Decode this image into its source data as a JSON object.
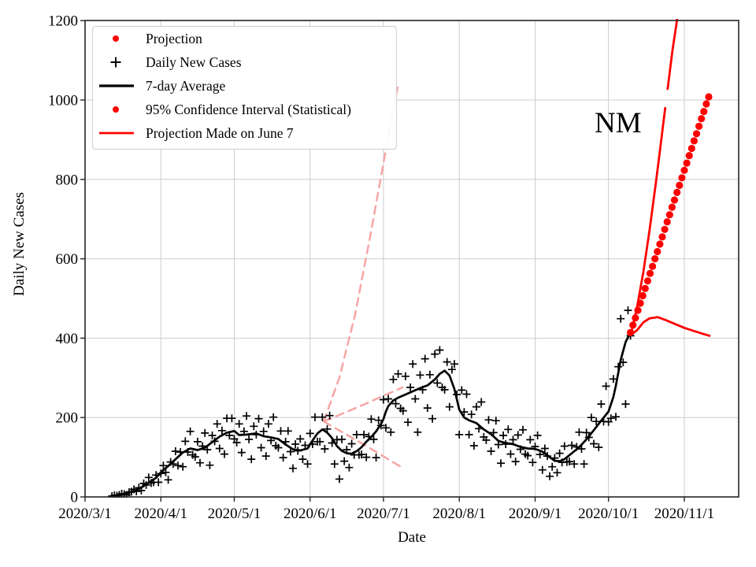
{
  "chart_data": {
    "type": "line",
    "title": "",
    "xlabel": "Date",
    "ylabel": "Daily New Cases",
    "annotation": "NM",
    "x_day_zero": "2020/3/1",
    "x_tick_labels": [
      "2020/3/1",
      "2020/4/1",
      "2020/5/1",
      "2020/6/1",
      "2020/7/1",
      "2020/8/1",
      "2020/9/1",
      "2020/10/1",
      "2020/11/1"
    ],
    "x_tick_days": [
      0,
      31,
      61,
      92,
      122,
      153,
      184,
      214,
      245
    ],
    "xlim_days": [
      0,
      267
    ],
    "y_ticks": [
      0,
      200,
      400,
      600,
      800,
      1000,
      1200
    ],
    "ylim": [
      0,
      1200
    ],
    "grid": true,
    "legend": {
      "position": "upper-left",
      "items": [
        {
          "label": "Projection",
          "marker": "red-dot"
        },
        {
          "label": "Daily New Cases",
          "marker": "black-plus"
        },
        {
          "label": "7-day Average",
          "marker": "black-line"
        },
        {
          "label": "95% Confidence Interval (Statistical)",
          "marker": "red-dot"
        },
        {
          "label": "Projection Made on June 7",
          "marker": "red-line"
        }
      ]
    },
    "colors": {
      "projection_red": "#ff0000",
      "data_black": "#000000",
      "june7_pink": "#f8a5a5",
      "grid_gray": "#cdcdcd",
      "spine": "#262626",
      "legend_border": "#d4d4d4"
    },
    "series": {
      "daily_new_cases": {
        "start_day": 11,
        "values": [
          2,
          4,
          3,
          5,
          8,
          7,
          5,
          12,
          13,
          19,
          14,
          23,
          16,
          34,
          30,
          49,
          35,
          37,
          55,
          37,
          59,
          79,
          62,
          43,
          88,
          83,
          115,
          79,
          113,
          76,
          140,
          113,
          165,
          106,
          101,
          139,
          86,
          128,
          161,
          119,
          80,
          155,
          140,
          184,
          122,
          167,
          108,
          198,
          155,
          198,
          146,
          137,
          184,
          112,
          165,
          204,
          145,
          95,
          178,
          157,
          197,
          124,
          165,
          103,
          184,
          142,
          201,
          129,
          124,
          166,
          99,
          139,
          166,
          114,
          72,
          133,
          116,
          146,
          95,
          130,
          83,
          160,
          133,
          201,
          139,
          139,
          201,
          121,
          171,
          205,
          136,
          83,
          144,
          45,
          145,
          90,
          119,
          74,
          134,
          106,
          157,
          106,
          107,
          157,
          100,
          152,
          196,
          145,
          99,
          193,
          180,
          245,
          174,
          247,
          163,
          296,
          235,
          310,
          223,
          217,
          304,
          188,
          276,
          335,
          247,
          163,
          307,
          270,
          348,
          224,
          308,
          197,
          360,
          287,
          370,
          276,
          270,
          340,
          227,
          321,
          335,
          258,
          157,
          269,
          214,
          259,
          157,
          208,
          129,
          227,
          172,
          239,
          151,
          143,
          194,
          115,
          162,
          192,
          132,
          85,
          155,
          133,
          170,
          108,
          144,
          89,
          156,
          120,
          169,
          108,
          104,
          144,
          87,
          127,
          155,
          107,
          68,
          122,
          103,
          52,
          76,
          98,
          61,
          110,
          87,
          128,
          88,
          89,
          130,
          83,
          126,
          163,
          121,
          83,
          162,
          150,
          200,
          134,
          190,
          125,
          234,
          190,
          279,
          189,
          198,
          297,
          202,
          328,
          449,
          339,
          234,
          470,
          406
        ]
      },
      "avg7": [
        [
          11,
          2
        ],
        [
          14,
          5
        ],
        [
          17,
          9
        ],
        [
          20,
          15
        ],
        [
          23,
          24
        ],
        [
          26,
          36
        ],
        [
          29,
          48
        ],
        [
          31,
          62
        ],
        [
          34,
          78
        ],
        [
          37,
          95
        ],
        [
          40,
          112
        ],
        [
          43,
          122
        ],
        [
          46,
          118
        ],
        [
          49,
          124
        ],
        [
          52,
          138
        ],
        [
          55,
          152
        ],
        [
          58,
          162
        ],
        [
          61,
          166
        ],
        [
          63,
          156
        ],
        [
          66,
          157
        ],
        [
          70,
          160
        ],
        [
          73,
          153
        ],
        [
          76,
          150
        ],
        [
          79,
          146
        ],
        [
          82,
          132
        ],
        [
          85,
          120
        ],
        [
          88,
          117
        ],
        [
          91,
          122
        ],
        [
          93,
          142
        ],
        [
          95,
          160
        ],
        [
          97,
          170
        ],
        [
          99,
          162
        ],
        [
          101,
          148
        ],
        [
          103,
          128
        ],
        [
          105,
          116
        ],
        [
          107,
          110
        ],
        [
          109,
          109
        ],
        [
          111,
          115
        ],
        [
          113,
          125
        ],
        [
          115,
          139
        ],
        [
          117,
          151
        ],
        [
          119,
          165
        ],
        [
          121,
          184
        ],
        [
          122,
          196
        ],
        [
          123,
          215
        ],
        [
          124,
          229
        ],
        [
          126,
          243
        ],
        [
          128,
          250
        ],
        [
          131,
          258
        ],
        [
          134,
          266
        ],
        [
          137,
          274
        ],
        [
          140,
          281
        ],
        [
          143,
          296
        ],
        [
          145,
          310
        ],
        [
          147,
          318
        ],
        [
          149,
          306
        ],
        [
          151,
          272
        ],
        [
          153,
          220
        ],
        [
          155,
          200
        ],
        [
          157,
          193
        ],
        [
          160,
          186
        ],
        [
          163,
          170
        ],
        [
          166,
          158
        ],
        [
          169,
          141
        ],
        [
          172,
          136
        ],
        [
          175,
          133
        ],
        [
          178,
          126
        ],
        [
          181,
          122
        ],
        [
          184,
          121
        ],
        [
          187,
          114
        ],
        [
          190,
          100
        ],
        [
          192,
          91
        ],
        [
          194,
          90
        ],
        [
          196,
          95
        ],
        [
          199,
          110
        ],
        [
          202,
          125
        ],
        [
          205,
          145
        ],
        [
          208,
          168
        ],
        [
          211,
          192
        ],
        [
          214,
          215
        ],
        [
          216,
          252
        ],
        [
          217,
          280
        ],
        [
          219,
          345
        ],
        [
          221,
          390
        ],
        [
          223,
          414
        ]
      ],
      "projection_dots": {
        "start_day": 223,
        "step_days": 1,
        "values": [
          414,
          433,
          451,
          470,
          488,
          507,
          525,
          544,
          563,
          581,
          600,
          618,
          637,
          655,
          674,
          693,
          711,
          730,
          748,
          767,
          785,
          804,
          823,
          841,
          860,
          878,
          897,
          915,
          934,
          953,
          971,
          990,
          1008
        ]
      },
      "upper_ci_segments": [
        [
          [
            223.1,
            408
          ],
          [
            225.7,
            479
          ],
          [
            228.3,
            568
          ],
          [
            230.8,
            673
          ],
          [
            233.4,
            792
          ],
          [
            235.3,
            885
          ],
          [
            237.2,
            980
          ]
        ],
        [
          [
            238.2,
            1028
          ],
          [
            240.1,
            1123
          ],
          [
            242.1,
            1206
          ]
        ]
      ],
      "lower_ci": [
        [
          223.1,
          408
        ],
        [
          225.7,
          420
        ],
        [
          228.3,
          440
        ],
        [
          230.8,
          450
        ],
        [
          234.1,
          453
        ],
        [
          237.2,
          446
        ],
        [
          241.1,
          436
        ],
        [
          245.0,
          426
        ],
        [
          248.9,
          418
        ],
        [
          252.1,
          412
        ],
        [
          255.3,
          406
        ]
      ],
      "june7_projection": {
        "upper": [
          [
            97.6,
            190
          ],
          [
            104,
            301
          ],
          [
            110.4,
            459
          ],
          [
            116.9,
            667
          ],
          [
            122.7,
            865
          ],
          [
            126.5,
            994
          ],
          [
            128.1,
            1040
          ]
        ],
        "middle": [
          [
            97.6,
            190
          ],
          [
            113.7,
            232
          ],
          [
            129.8,
            276
          ]
        ],
        "lower": [
          [
            97.6,
            190
          ],
          [
            113.7,
            133
          ],
          [
            130.4,
            71
          ]
        ]
      }
    }
  }
}
